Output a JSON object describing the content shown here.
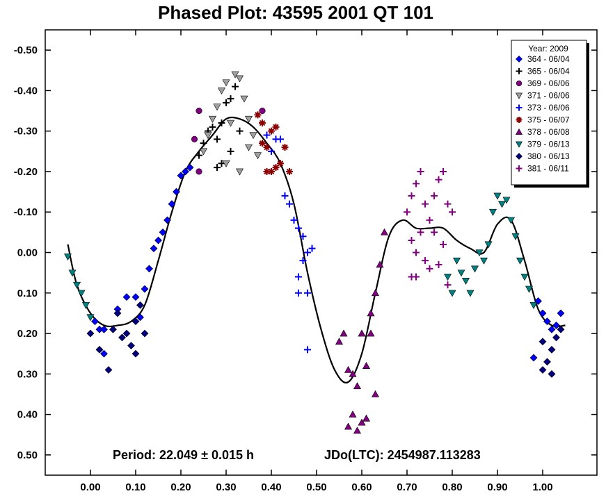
{
  "chart_data": {
    "type": "scatter",
    "title": "Phased Plot: 43595  2001 QT 101",
    "xlabel": "",
    "ylabel": "",
    "xlim": [
      -0.1,
      1.12
    ],
    "ylim": [
      0.55,
      -0.55
    ],
    "y_inverted": true,
    "grid": false,
    "x_ticks": [
      "0.00",
      "0.10",
      "0.20",
      "0.30",
      "0.40",
      "0.50",
      "0.60",
      "0.70",
      "0.80",
      "0.90",
      "1.00"
    ],
    "x_tick_values": [
      0,
      0.1,
      0.2,
      0.3,
      0.4,
      0.5,
      0.6,
      0.7,
      0.8,
      0.9,
      1.0
    ],
    "y_ticks": [
      "-0.50",
      "-0.40",
      "-0.30",
      "-0.20",
      "-0.10",
      "0.00",
      "0.10",
      "0.20",
      "0.30",
      "0.40",
      "0.50"
    ],
    "y_tick_values": [
      -0.5,
      -0.4,
      -0.3,
      -0.2,
      -0.1,
      0,
      0.1,
      0.2,
      0.3,
      0.4,
      0.5
    ],
    "annotation_period": "Period: 22.049 ± 0.015 h",
    "annotation_jdo": "JDo(LTC): 2454987.113283",
    "legend": {
      "title": "Year: 2009",
      "position": "top-right",
      "entries": [
        {
          "label": "364 - 06/04",
          "color": "#0000ff",
          "marker": "diamond"
        },
        {
          "label": "365 - 06/04",
          "color": "#000000",
          "marker": "plus"
        },
        {
          "label": "369 - 06/06",
          "color": "#800080",
          "marker": "circle"
        },
        {
          "label": "371 - 06/06",
          "color": "#a0a0a0",
          "marker": "triangle-down"
        },
        {
          "label": "373 - 06/06",
          "color": "#0000ff",
          "marker": "plus"
        },
        {
          "label": "375 - 06/07",
          "color": "#8b0000",
          "marker": "asterisk"
        },
        {
          "label": "378 - 06/08",
          "color": "#800080",
          "marker": "triangle-up"
        },
        {
          "label": "379 - 06/13",
          "color": "#008080",
          "marker": "triangle-down"
        },
        {
          "label": "380 - 06/13",
          "color": "#000080",
          "marker": "diamond"
        },
        {
          "label": "381 - 06/11",
          "color": "#800080",
          "marker": "plus"
        }
      ]
    },
    "fit_curve": [
      [
        -0.05,
        -0.02
      ],
      [
        -0.03,
        0.08
      ],
      [
        0.0,
        0.15
      ],
      [
        0.03,
        0.18
      ],
      [
        0.06,
        0.18
      ],
      [
        0.09,
        0.17
      ],
      [
        0.12,
        0.13
      ],
      [
        0.15,
        0.02
      ],
      [
        0.18,
        -0.1
      ],
      [
        0.21,
        -0.2
      ],
      [
        0.24,
        -0.25
      ],
      [
        0.27,
        -0.29
      ],
      [
        0.3,
        -0.33
      ],
      [
        0.33,
        -0.33
      ],
      [
        0.36,
        -0.31
      ],
      [
        0.39,
        -0.27
      ],
      [
        0.42,
        -0.22
      ],
      [
        0.45,
        -0.12
      ],
      [
        0.48,
        0.05
      ],
      [
        0.51,
        0.19
      ],
      [
        0.54,
        0.29
      ],
      [
        0.57,
        0.32
      ],
      [
        0.6,
        0.25
      ],
      [
        0.63,
        0.1
      ],
      [
        0.66,
        -0.04
      ],
      [
        0.69,
        -0.08
      ],
      [
        0.72,
        -0.06
      ],
      [
        0.75,
        -0.06
      ],
      [
        0.78,
        -0.06
      ],
      [
        0.81,
        -0.03
      ],
      [
        0.84,
        -0.01
      ],
      [
        0.87,
        0.0
      ],
      [
        0.9,
        -0.07
      ],
      [
        0.93,
        -0.08
      ],
      [
        0.96,
        0.02
      ],
      [
        0.99,
        0.14
      ],
      [
        1.02,
        0.18
      ],
      [
        1.05,
        0.18
      ]
    ],
    "series": [
      {
        "name": "364 - 06/04",
        "points": [
          [
            0.01,
            0.17
          ],
          [
            0.02,
            0.19
          ],
          [
            0.03,
            0.19
          ],
          [
            0.06,
            0.14
          ],
          [
            0.08,
            0.11
          ],
          [
            0.1,
            0.11
          ],
          [
            0.11,
            0.16
          ],
          [
            0.12,
            0.09
          ],
          [
            0.13,
            0.04
          ],
          [
            0.14,
            -0.01
          ],
          [
            0.15,
            -0.03
          ],
          [
            0.16,
            -0.05
          ],
          [
            0.17,
            -0.08
          ],
          [
            0.18,
            -0.12
          ],
          [
            0.19,
            -0.15
          ],
          [
            0.2,
            -0.19
          ],
          [
            0.21,
            -0.2
          ],
          [
            0.22,
            -0.21
          ],
          [
            0.03,
            0.25
          ],
          [
            0.99,
            0.12
          ],
          [
            1.0,
            0.15
          ],
          [
            1.01,
            0.17
          ],
          [
            1.02,
            0.19
          ],
          [
            1.03,
            0.18
          ],
          [
            1.04,
            0.15
          ],
          [
            0.98,
            0.26
          ]
        ]
      },
      {
        "name": "365 - 06/04",
        "points": [
          [
            0.25,
            -0.27
          ],
          [
            0.26,
            -0.3
          ],
          [
            0.27,
            -0.31
          ],
          [
            0.28,
            -0.28
          ],
          [
            0.29,
            -0.32
          ],
          [
            0.3,
            -0.37
          ],
          [
            0.31,
            -0.38
          ],
          [
            0.32,
            -0.41
          ],
          [
            0.33,
            -0.3
          ],
          [
            0.29,
            -0.22
          ],
          [
            0.28,
            -0.21
          ],
          [
            0.31,
            -0.25
          ],
          [
            0.24,
            -0.24
          ]
        ]
      },
      {
        "name": "369 - 06/06",
        "points": [
          [
            0.23,
            -0.28
          ],
          [
            0.24,
            -0.2
          ],
          [
            0.24,
            -0.35
          ],
          [
            0.38,
            -0.35
          ]
        ]
      },
      {
        "name": "371 - 06/06",
        "points": [
          [
            0.25,
            -0.25
          ],
          [
            0.26,
            -0.29
          ],
          [
            0.27,
            -0.33
          ],
          [
            0.28,
            -0.36
          ],
          [
            0.29,
            -0.4
          ],
          [
            0.3,
            -0.42
          ],
          [
            0.31,
            -0.32
          ],
          [
            0.32,
            -0.44
          ],
          [
            0.33,
            -0.43
          ],
          [
            0.34,
            -0.38
          ],
          [
            0.35,
            -0.33
          ],
          [
            0.36,
            -0.29
          ],
          [
            0.37,
            -0.24
          ],
          [
            0.3,
            -0.22
          ],
          [
            0.33,
            -0.2
          ],
          [
            0.35,
            -0.26
          ]
        ]
      },
      {
        "name": "373 - 06/06",
        "points": [
          [
            0.39,
            -0.29
          ],
          [
            0.4,
            -0.25
          ],
          [
            0.41,
            -0.28
          ],
          [
            0.42,
            -0.28
          ],
          [
            0.43,
            -0.14
          ],
          [
            0.44,
            -0.12
          ],
          [
            0.45,
            -0.08
          ],
          [
            0.46,
            -0.06
          ],
          [
            0.47,
            -0.04
          ],
          [
            0.48,
            0.0
          ],
          [
            0.47,
            0.02
          ],
          [
            0.46,
            0.06
          ],
          [
            0.48,
            0.1
          ],
          [
            0.46,
            0.1
          ],
          [
            0.48,
            0.24
          ],
          [
            0.49,
            -0.01
          ]
        ]
      },
      {
        "name": "375 - 06/07",
        "points": [
          [
            0.37,
            -0.34
          ],
          [
            0.38,
            -0.32
          ],
          [
            0.39,
            -0.26
          ],
          [
            0.4,
            -0.3
          ],
          [
            0.41,
            -0.31
          ],
          [
            0.42,
            -0.22
          ],
          [
            0.43,
            -0.26
          ],
          [
            0.4,
            -0.2
          ],
          [
            0.39,
            -0.2
          ],
          [
            0.41,
            -0.21
          ],
          [
            0.44,
            -0.2
          ],
          [
            0.38,
            -0.27
          ]
        ]
      },
      {
        "name": "378 - 06/08",
        "points": [
          [
            0.55,
            0.22
          ],
          [
            0.56,
            0.2
          ],
          [
            0.57,
            0.29
          ],
          [
            0.58,
            0.3
          ],
          [
            0.59,
            0.33
          ],
          [
            0.6,
            0.2
          ],
          [
            0.61,
            0.28
          ],
          [
            0.62,
            0.15
          ],
          [
            0.63,
            0.1
          ],
          [
            0.64,
            0.03
          ],
          [
            0.65,
            -0.05
          ],
          [
            0.57,
            0.43
          ],
          [
            0.58,
            0.4
          ],
          [
            0.59,
            0.44
          ],
          [
            0.6,
            0.42
          ],
          [
            0.61,
            0.41
          ],
          [
            0.63,
            0.35
          ],
          [
            0.62,
            0.2
          ]
        ]
      },
      {
        "name": "379 - 06/13",
        "points": [
          [
            -0.05,
            0.01
          ],
          [
            -0.04,
            0.05
          ],
          [
            -0.03,
            0.08
          ],
          [
            -0.02,
            0.1
          ],
          [
            -0.01,
            0.13
          ],
          [
            0.0,
            0.16
          ],
          [
            0.81,
            0.02
          ],
          [
            0.82,
            0.05
          ],
          [
            0.83,
            0.07
          ],
          [
            0.84,
            0.1
          ],
          [
            0.85,
            0.04
          ],
          [
            0.86,
            0.0
          ],
          [
            0.87,
            0.02
          ],
          [
            0.88,
            -0.02
          ],
          [
            0.89,
            -0.1
          ],
          [
            0.9,
            -0.14
          ],
          [
            0.91,
            -0.12
          ],
          [
            0.92,
            -0.13
          ],
          [
            0.93,
            -0.08
          ],
          [
            0.94,
            -0.04
          ],
          [
            0.95,
            0.02
          ],
          [
            0.96,
            0.06
          ],
          [
            0.97,
            0.09
          ],
          [
            0.98,
            0.13
          ],
          [
            0.8,
            0.1
          ],
          [
            0.79,
            0.06
          ]
        ]
      },
      {
        "name": "380 - 06/13",
        "points": [
          [
            0.0,
            0.2
          ],
          [
            0.02,
            0.24
          ],
          [
            0.04,
            0.29
          ],
          [
            0.05,
            0.19
          ],
          [
            0.06,
            0.15
          ],
          [
            0.07,
            0.21
          ],
          [
            0.08,
            0.2
          ],
          [
            0.09,
            0.23
          ],
          [
            0.1,
            0.17
          ],
          [
            0.11,
            0.13
          ],
          [
            0.12,
            0.2
          ],
          [
            0.1,
            0.25
          ],
          [
            1.0,
            0.22
          ],
          [
            1.01,
            0.27
          ],
          [
            1.02,
            0.24
          ],
          [
            1.03,
            0.21
          ],
          [
            1.04,
            0.19
          ],
          [
            1.0,
            0.29
          ],
          [
            1.02,
            0.3
          ]
        ]
      },
      {
        "name": "381 - 06/11",
        "points": [
          [
            0.7,
            -0.1
          ],
          [
            0.71,
            -0.14
          ],
          [
            0.72,
            -0.17
          ],
          [
            0.73,
            -0.2
          ],
          [
            0.74,
            -0.12
          ],
          [
            0.75,
            -0.08
          ],
          [
            0.76,
            -0.14
          ],
          [
            0.77,
            -0.18
          ],
          [
            0.78,
            -0.2
          ],
          [
            0.79,
            -0.12
          ],
          [
            0.8,
            -0.1
          ],
          [
            0.71,
            -0.03
          ],
          [
            0.72,
            0.0
          ],
          [
            0.73,
            -0.05
          ],
          [
            0.74,
            0.02
          ],
          [
            0.75,
            0.04
          ],
          [
            0.76,
            -0.05
          ],
          [
            0.77,
            0.03
          ],
          [
            0.78,
            -0.02
          ],
          [
            0.79,
            0.08
          ],
          [
            0.72,
            0.06
          ],
          [
            0.71,
            0.06
          ]
        ]
      }
    ]
  }
}
